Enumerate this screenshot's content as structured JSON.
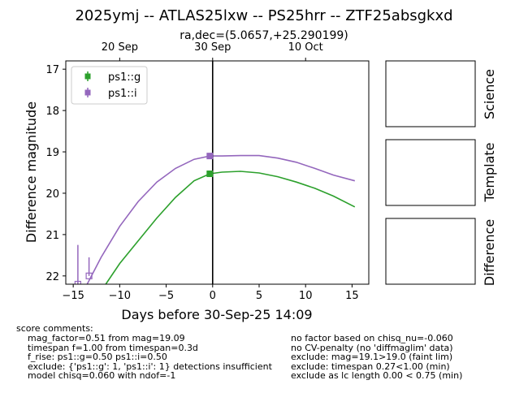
{
  "chart_data": {
    "type": "scatter",
    "title": "2025ymj -- ATLAS25lxw -- PS25hrr -- ZTF25absgkxd",
    "subtitle": "ra,dec=(5.0657,+25.290199)",
    "xlabel": "Days before 30-Sep-25 14:09",
    "ylabel": "Difference magnitude",
    "xlim": [
      -15.8,
      16.8
    ],
    "ylim": [
      22.2,
      16.8
    ],
    "y_inverted": true,
    "xticks": [
      -15,
      -10,
      -5,
      0,
      5,
      10,
      15
    ],
    "xtick_labels": [
      "−15",
      "−10",
      "−5",
      "0",
      "5",
      "10",
      "15"
    ],
    "yticks": [
      17,
      18,
      19,
      20,
      21,
      22
    ],
    "ytick_labels": [
      "17",
      "18",
      "19",
      "20",
      "21",
      "22"
    ],
    "top_axis": {
      "ticks": [
        -10,
        0,
        10
      ],
      "labels": [
        "20 Sep",
        "30 Sep",
        "10 Oct"
      ]
    },
    "vline_x": 0,
    "legend_position": "top-left",
    "series": [
      {
        "name": "ps1::g",
        "color": "#2ca02c",
        "points": [
          {
            "x": -0.3,
            "y": 19.53,
            "yerr": 0.04
          }
        ],
        "curve_x": [
          -11.5,
          -10,
          -8,
          -6,
          -4,
          -2,
          -0.3,
          1,
          3,
          5,
          7,
          9,
          11,
          13,
          15.3
        ],
        "curve_y": [
          22.2,
          21.7,
          21.15,
          20.6,
          20.1,
          19.7,
          19.53,
          19.49,
          19.47,
          19.51,
          19.6,
          19.73,
          19.88,
          20.07,
          20.33
        ]
      },
      {
        "name": "ps1::i",
        "color": "#9467bd",
        "points": [
          {
            "x": -0.3,
            "y": 19.1,
            "yerr": 0.04
          }
        ],
        "curve_x": [
          -13.5,
          -12,
          -10,
          -8,
          -6,
          -4,
          -2,
          -0.3,
          1,
          3,
          5,
          7,
          9,
          11,
          13,
          15.3
        ],
        "curve_y": [
          22.2,
          21.55,
          20.8,
          20.2,
          19.73,
          19.4,
          19.18,
          19.1,
          19.1,
          19.09,
          19.09,
          19.15,
          19.25,
          19.4,
          19.56,
          19.7
        ],
        "limits": [
          {
            "x": -14.5,
            "y": 22.2,
            "yerr_up": 0.95
          },
          {
            "x": -13.3,
            "y": 22.0,
            "yerr_up": 0.45
          }
        ]
      }
    ],
    "panels": [
      "Science",
      "Template",
      "Difference"
    ]
  },
  "comments": {
    "header": "score comments:",
    "left": [
      "mag_factor=0.51 from mag=19.09",
      "timespan f=1.00 from timespan=0.3d",
      "f_rise: ps1::g=0.50 ps1::i=0.50",
      "exclude: {'ps1::g': 1, 'ps1::i': 1} detections insufficient",
      "model chisq=0.060 with ndof=-1"
    ],
    "right": [
      "no factor based on chisq_nu=-0.060",
      "no CV-penalty (no 'diffmaglim' data)",
      "exclude: mag=19.1>19.0 (faint lim)",
      "exclude: timespan 0.27<1.00 (min)",
      "exclude as lc length 0.00 < 0.75 (min)"
    ]
  }
}
